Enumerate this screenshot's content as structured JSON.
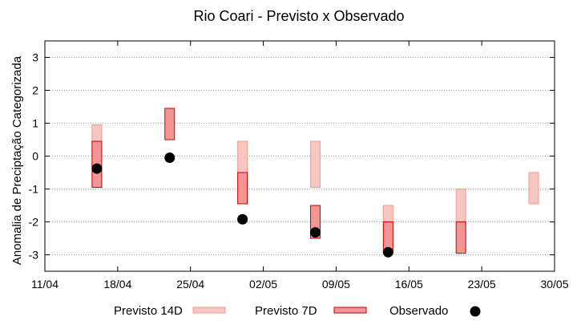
{
  "chart_data": {
    "type": "range-bar-scatter",
    "title": "Rio Coari - Previsto x Observado",
    "ylabel": "Anomalia de Preciptação Categorizada",
    "xlabel": "",
    "ylim": [
      -3.5,
      3.5
    ],
    "yticks": [
      3,
      2,
      1,
      0,
      -1,
      -2,
      -3
    ],
    "xlim": [
      "2024-04-11",
      "2024-05-30"
    ],
    "xticks": [
      {
        "date": "2024-04-11",
        "label": "11/04"
      },
      {
        "date": "2024-04-18",
        "label": "18/04"
      },
      {
        "date": "2024-04-25",
        "label": "25/04"
      },
      {
        "date": "2024-05-02",
        "label": "02/05"
      },
      {
        "date": "2024-05-09",
        "label": "09/05"
      },
      {
        "date": "2024-05-16",
        "label": "16/05"
      },
      {
        "date": "2024-05-23",
        "label": "23/05"
      },
      {
        "date": "2024-05-30",
        "label": "30/05"
      }
    ],
    "grid": true,
    "legend_position": "bottom",
    "series": [
      {
        "name": "Previsto 14D",
        "kind": "range",
        "color": "#f7c6c0",
        "stroke": "#f29a90",
        "points": [
          {
            "date": "2024-04-16",
            "low": -0.95,
            "high": 0.95
          },
          {
            "date": "2024-04-30",
            "low": -0.5,
            "high": 0.45
          },
          {
            "date": "2024-05-07",
            "low": -0.95,
            "high": 0.45
          },
          {
            "date": "2024-05-14",
            "low": -2.0,
            "high": -1.5
          },
          {
            "date": "2024-05-21",
            "low": -2.0,
            "high": -1.0
          },
          {
            "date": "2024-05-28",
            "low": -1.45,
            "high": -0.5
          }
        ]
      },
      {
        "name": "Previsto 7D",
        "kind": "range",
        "color": "#f49595",
        "stroke": "#cc0000",
        "points": [
          {
            "date": "2024-04-16",
            "low": -0.95,
            "high": 0.45
          },
          {
            "date": "2024-04-23",
            "low": 0.5,
            "high": 1.45
          },
          {
            "date": "2024-04-30",
            "low": -1.45,
            "high": -0.5
          },
          {
            "date": "2024-05-07",
            "low": -2.5,
            "high": -1.5
          },
          {
            "date": "2024-05-14",
            "low": -2.95,
            "high": -2.0
          },
          {
            "date": "2024-05-21",
            "low": -2.95,
            "high": -2.0
          }
        ]
      },
      {
        "name": "Observado",
        "kind": "point",
        "color": "#000000",
        "points": [
          {
            "date": "2024-04-16",
            "y": -0.38
          },
          {
            "date": "2024-04-23",
            "y": -0.05
          },
          {
            "date": "2024-04-30",
            "y": -1.92
          },
          {
            "date": "2024-05-07",
            "y": -2.32
          },
          {
            "date": "2024-05-14",
            "y": -2.92
          }
        ]
      }
    ]
  }
}
